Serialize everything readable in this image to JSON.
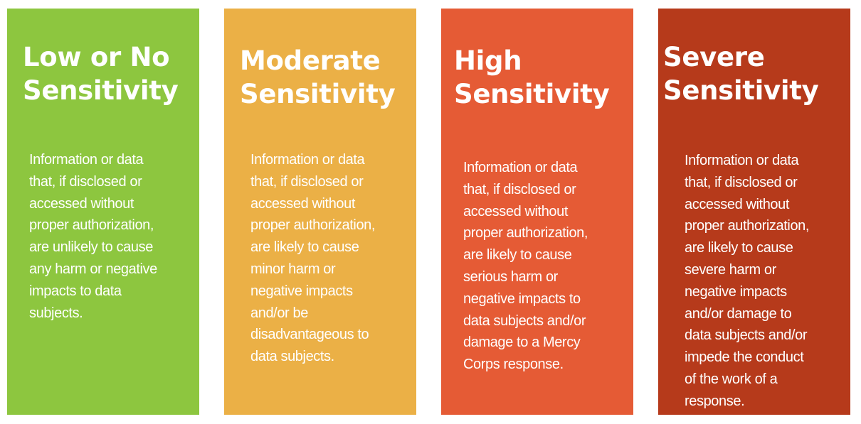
{
  "cards": [
    {
      "title": "Low or No\nSensitivity",
      "body": "Information or data\nthat, if disclosed or\naccessed without\nproper authorization,\nare unlikely to cause\nany harm or negative\nimpacts to data\nsubjects.",
      "color": "#8dc63f"
    },
    {
      "title": "Moderate\nSensitivity",
      "body": "Information or data\nthat, if disclosed or\naccessed without\nproper authorization,\nare likely to cause\nminor harm or\nnegative impacts\nand/or be\ndisadvantageous to\ndata subjects.",
      "color": "#ebb046"
    },
    {
      "title": "High\nSensitivity",
      "body": "Information or data\nthat, if disclosed or\naccessed without\nproper authorization,\nare likely to cause\nserious harm or\nnegative impacts to\ndata subjects and/or\ndamage to a Mercy\nCorps response.",
      "color": "#e55b35"
    },
    {
      "title": "Severe\nSensitivity",
      "body": "Information or data\nthat, if disclosed or\naccessed without\nproper authorization,\nare likely to cause\nsevere harm or\nnegative impacts\nand/or damage to\ndata subjects and/or\nimpede the conduct\nof the work of a\nresponse.",
      "color": "#b63a1b"
    }
  ]
}
